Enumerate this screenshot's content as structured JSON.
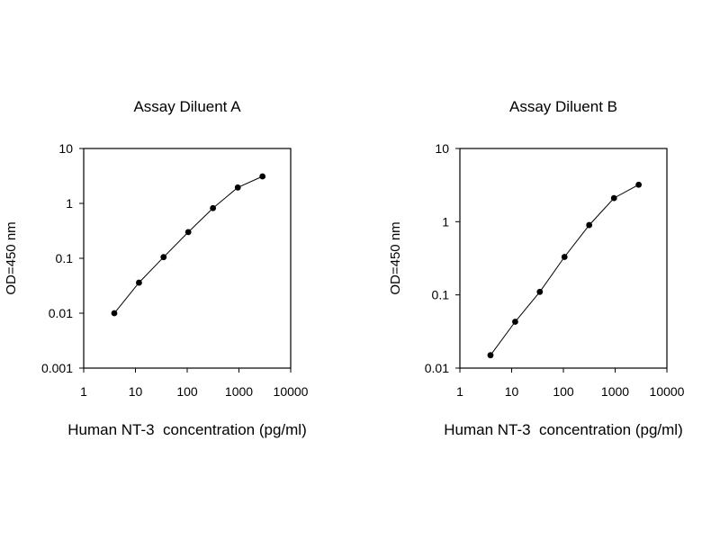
{
  "chart_data": [
    {
      "type": "line",
      "title": "Assay Diluent A",
      "xlabel": "Human NT-3  concentration (pg/ml)",
      "ylabel": "OD=450 nm",
      "xscale": "log",
      "yscale": "log",
      "xlim": [
        1,
        10000
      ],
      "ylim": [
        0.001,
        10
      ],
      "xticks": [
        "1",
        "10",
        "100",
        "1000",
        "10000"
      ],
      "yticks": [
        "10",
        "1",
        "0.1",
        "0.01",
        "0.001"
      ],
      "grid": false,
      "series": [
        {
          "x": [
            3.9,
            11.7,
            35,
            105,
            315,
            950,
            2850
          ],
          "y": [
            0.01,
            0.036,
            0.105,
            0.3,
            0.82,
            1.95,
            3.1
          ]
        }
      ]
    },
    {
      "type": "line",
      "title": "Assay Diluent B",
      "xlabel": "Human NT-3  concentration (pg/ml)",
      "ylabel": "OD=450 nm",
      "xscale": "log",
      "yscale": "log",
      "xlim": [
        1,
        10000
      ],
      "ylim": [
        0.01,
        10
      ],
      "xticks": [
        "1",
        "10",
        "100",
        "1000",
        "10000"
      ],
      "yticks": [
        "10",
        "1",
        "0.1",
        "0.01"
      ],
      "grid": false,
      "series": [
        {
          "x": [
            3.9,
            11.7,
            35,
            105,
            315,
            950,
            2850
          ],
          "y": [
            0.015,
            0.043,
            0.11,
            0.33,
            0.9,
            2.1,
            3.2
          ]
        }
      ]
    }
  ]
}
